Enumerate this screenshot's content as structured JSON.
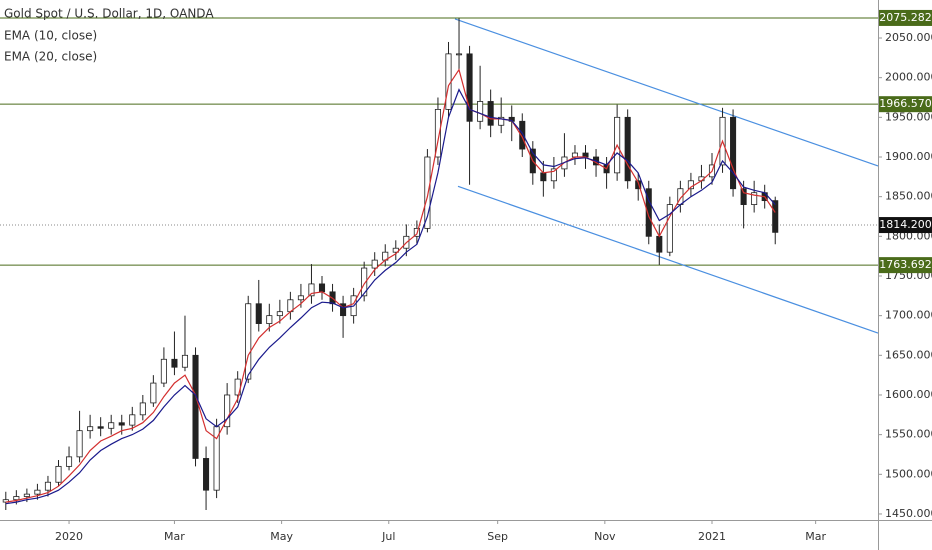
{
  "chart_data": {
    "type": "candlestick",
    "title": "Gold Spot / U.S. Dollar, 1D, OANDA",
    "x": [
      -36,
      -30,
      -24,
      -18,
      -12,
      -6,
      0,
      6,
      12,
      18,
      24,
      30,
      36,
      42,
      48,
      54,
      60,
      66,
      72,
      78,
      84,
      90,
      96,
      102,
      108,
      114,
      120,
      126,
      132,
      138,
      144,
      150,
      156,
      162,
      168,
      174,
      180,
      186,
      192,
      198,
      204,
      210,
      216,
      222,
      228,
      234,
      240,
      246,
      252,
      258,
      264,
      270,
      276,
      282,
      288,
      294,
      300,
      306,
      312,
      318,
      324,
      330,
      336,
      342,
      348,
      354,
      360,
      366,
      372,
      378,
      384,
      390,
      396,
      402
    ],
    "open": [
      1465,
      1468,
      1472,
      1475,
      1480,
      1490,
      1510,
      1522,
      1555,
      1560,
      1558,
      1565,
      1562,
      1575,
      1590,
      1615,
      1645,
      1635,
      1650,
      1520,
      1480,
      1560,
      1600,
      1620,
      1715,
      1690,
      1700,
      1705,
      1720,
      1725,
      1740,
      1730,
      1715,
      1700,
      1725,
      1760,
      1770,
      1780,
      1785,
      1800,
      1810,
      1900,
      1960,
      2030,
      2030,
      1945,
      1970,
      1940,
      1950,
      1945,
      1910,
      1880,
      1870,
      1885,
      1900,
      1905,
      1900,
      1890,
      1880,
      1950,
      1870,
      1860,
      1800,
      1780,
      1840,
      1860,
      1870,
      1875,
      1890,
      1950,
      1860,
      1840,
      1855,
      1845
    ],
    "high": [
      1478,
      1480,
      1482,
      1488,
      1498,
      1518,
      1535,
      1580,
      1575,
      1572,
      1575,
      1575,
      1585,
      1600,
      1625,
      1660,
      1680,
      1700,
      1660,
      1535,
      1570,
      1615,
      1630,
      1725,
      1745,
      1715,
      1720,
      1730,
      1740,
      1765,
      1750,
      1740,
      1725,
      1735,
      1768,
      1780,
      1790,
      1795,
      1815,
      1820,
      1910,
      1975,
      2045,
      2075,
      2040,
      2015,
      1985,
      1975,
      1965,
      1955,
      1920,
      1895,
      1900,
      1930,
      1915,
      1915,
      1910,
      1900,
      1966,
      1960,
      1880,
      1870,
      1815,
      1850,
      1870,
      1880,
      1890,
      1905,
      1962,
      1960,
      1870,
      1870,
      1865,
      1850
    ],
    "low": [
      1455,
      1462,
      1465,
      1468,
      1472,
      1485,
      1505,
      1515,
      1545,
      1548,
      1550,
      1550,
      1555,
      1568,
      1585,
      1610,
      1625,
      1630,
      1510,
      1455,
      1470,
      1550,
      1590,
      1615,
      1680,
      1680,
      1690,
      1695,
      1710,
      1715,
      1720,
      1705,
      1672,
      1690,
      1718,
      1750,
      1762,
      1770,
      1775,
      1790,
      1805,
      1890,
      1950,
      2010,
      1865,
      1935,
      1925,
      1930,
      1920,
      1900,
      1865,
      1850,
      1860,
      1875,
      1890,
      1885,
      1875,
      1860,
      1870,
      1860,
      1845,
      1790,
      1764,
      1775,
      1830,
      1850,
      1860,
      1865,
      1880,
      1850,
      1810,
      1830,
      1835,
      1790
    ],
    "close": [
      1468,
      1472,
      1475,
      1480,
      1490,
      1510,
      1522,
      1555,
      1560,
      1558,
      1565,
      1562,
      1575,
      1590,
      1615,
      1645,
      1635,
      1650,
      1520,
      1480,
      1560,
      1600,
      1620,
      1715,
      1690,
      1700,
      1705,
      1720,
      1725,
      1740,
      1730,
      1715,
      1700,
      1725,
      1760,
      1770,
      1780,
      1785,
      1800,
      1810,
      1900,
      1960,
      2030,
      2030,
      1945,
      1970,
      1940,
      1950,
      1945,
      1910,
      1880,
      1870,
      1885,
      1900,
      1905,
      1900,
      1890,
      1880,
      1950,
      1870,
      1860,
      1800,
      1780,
      1840,
      1860,
      1870,
      1875,
      1890,
      1950,
      1860,
      1840,
      1855,
      1845,
      1805
    ],
    "series": [
      {
        "name": "EMA (10, close)",
        "color": "#d32f2f",
        "values": [
          1465,
          1467,
          1470,
          1473,
          1477,
          1485,
          1498,
          1512,
          1530,
          1542,
          1548,
          1555,
          1558,
          1565,
          1578,
          1598,
          1615,
          1625,
          1600,
          1555,
          1545,
          1570,
          1595,
          1650,
          1672,
          1685,
          1693,
          1705,
          1715,
          1728,
          1730,
          1722,
          1710,
          1715,
          1740,
          1758,
          1770,
          1778,
          1792,
          1803,
          1850,
          1920,
          1990,
          2010,
          1960,
          1955,
          1948,
          1948,
          1946,
          1925,
          1895,
          1880,
          1882,
          1893,
          1900,
          1900,
          1893,
          1885,
          1915,
          1890,
          1868,
          1825,
          1800,
          1825,
          1848,
          1862,
          1870,
          1882,
          1920,
          1885,
          1855,
          1852,
          1850,
          1830
        ]
      },
      {
        "name": "EMA (20, close)",
        "color": "#1a1a8c",
        "values": [
          1463,
          1465,
          1468,
          1470,
          1474,
          1480,
          1490,
          1502,
          1518,
          1530,
          1538,
          1545,
          1550,
          1557,
          1568,
          1585,
          1600,
          1612,
          1600,
          1570,
          1560,
          1570,
          1585,
          1625,
          1645,
          1660,
          1672,
          1685,
          1697,
          1710,
          1717,
          1716,
          1710,
          1712,
          1728,
          1745,
          1757,
          1767,
          1780,
          1790,
          1825,
          1880,
          1950,
          1985,
          1960,
          1955,
          1950,
          1948,
          1946,
          1930,
          1905,
          1890,
          1888,
          1893,
          1898,
          1899,
          1895,
          1890,
          1905,
          1895,
          1880,
          1845,
          1820,
          1828,
          1840,
          1850,
          1858,
          1868,
          1895,
          1880,
          1862,
          1858,
          1855,
          1840
        ]
      }
    ],
    "xlim": [
      -39.3,
      460.5
    ],
    "xticks": [
      {
        "value": 0,
        "label": "2020"
      },
      {
        "value": 60,
        "label": "Mar"
      },
      {
        "value": 121,
        "label": "May"
      },
      {
        "value": 182,
        "label": "Jul"
      },
      {
        "value": 244,
        "label": "Sep"
      },
      {
        "value": 305,
        "label": "Nov"
      },
      {
        "value": 366,
        "label": "2021"
      },
      {
        "value": 425,
        "label": "Mar"
      }
    ],
    "ylim": [
      1442.4,
      2097.9
    ],
    "yticks": [
      {
        "value": 1450,
        "label": "1450.000"
      },
      {
        "value": 1500,
        "label": "1500.000"
      },
      {
        "value": 1550,
        "label": "1550.000"
      },
      {
        "value": 1600,
        "label": "1600.000"
      },
      {
        "value": 1650,
        "label": "1650.000"
      },
      {
        "value": 1700,
        "label": "1700.000"
      },
      {
        "value": 1750,
        "label": "1750.000"
      },
      {
        "value": 1800,
        "label": "1800.000"
      },
      {
        "value": 1850,
        "label": "1850.000"
      },
      {
        "value": 1900,
        "label": "1900.000"
      },
      {
        "value": 1950,
        "label": "1950.000"
      },
      {
        "value": 2000,
        "label": "2000.000"
      },
      {
        "value": 2050,
        "label": "2050.000"
      }
    ],
    "levels": [
      2075.282,
      {
        "value": 1966.57,
        "label": "1966.570"
      },
      1763.692
    ],
    "level_color": "#4a6b1a",
    "last_price": {
      "value": 1814.2,
      "label": "1814.200"
    },
    "last_price_color": "#111111",
    "channel_color": "#4a8fe0",
    "channel": [
      {
        "x": [
          219.7,
          460.5
        ],
        "y": [
          2074,
          1888.7
        ]
      },
      {
        "x": [
          221.4,
          460.5
        ],
        "y": [
          1863,
          1678
        ]
      }
    ]
  }
}
